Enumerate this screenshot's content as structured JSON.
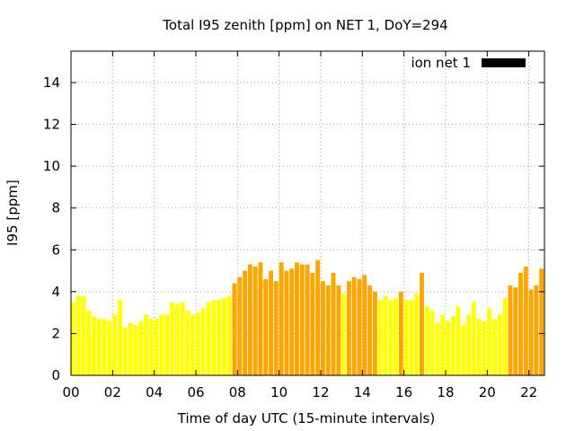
{
  "chart_data": {
    "type": "bar",
    "title": "Total I95 zenith [ppm] on NET 1, DoY=294",
    "xlabel": "Time of day UTC (15-minute intervals)",
    "ylabel": "I95 [ppm]",
    "xlim": [
      0,
      22.75
    ],
    "ylim": [
      0,
      15.5
    ],
    "x_ticks": [
      0,
      2,
      4,
      6,
      8,
      10,
      12,
      14,
      16,
      18,
      20,
      22
    ],
    "x_tick_labels": [
      "00",
      "02",
      "04",
      "06",
      "08",
      "10",
      "12",
      "14",
      "16",
      "18",
      "20",
      "22"
    ],
    "y_ticks": [
      0,
      2,
      4,
      6,
      8,
      10,
      12,
      14
    ],
    "y_tick_labels": [
      "0",
      "2",
      "4",
      "6",
      "8",
      "10",
      "12",
      "14"
    ],
    "grid": true,
    "legend": {
      "position": "top-right",
      "label": "ion net 1",
      "color": "#000000"
    },
    "interval_hours": 0.25,
    "colors": {
      "low": "#ffff00",
      "medium": "#ffa500"
    },
    "series": [
      {
        "name": "ion net 1",
        "x": [
          0.0,
          0.25,
          0.5,
          0.75,
          1.0,
          1.25,
          1.5,
          1.75,
          2.0,
          2.25,
          2.5,
          2.75,
          3.0,
          3.25,
          3.5,
          3.75,
          4.0,
          4.25,
          4.5,
          4.75,
          5.0,
          5.25,
          5.5,
          5.75,
          6.0,
          6.25,
          6.5,
          6.75,
          7.0,
          7.25,
          7.5,
          7.75,
          8.0,
          8.25,
          8.5,
          8.75,
          9.0,
          9.25,
          9.5,
          9.75,
          10.0,
          10.25,
          10.5,
          10.75,
          11.0,
          11.25,
          11.5,
          11.75,
          12.0,
          12.25,
          12.5,
          12.75,
          13.0,
          13.25,
          13.5,
          13.75,
          14.0,
          14.25,
          14.5,
          14.75,
          15.0,
          15.25,
          15.5,
          15.75,
          16.0,
          16.25,
          16.5,
          16.75,
          17.0,
          17.25,
          17.5,
          17.75,
          18.0,
          18.25,
          18.5,
          18.75,
          19.0,
          19.25,
          19.5,
          19.75,
          20.0,
          20.25,
          20.5,
          20.75,
          21.0,
          21.25,
          21.5,
          21.75,
          22.0,
          22.25,
          22.5,
          22.75
        ],
        "values": [
          3.5,
          3.8,
          3.8,
          3.1,
          2.8,
          2.7,
          2.7,
          2.6,
          2.9,
          3.6,
          2.3,
          2.5,
          2.4,
          2.6,
          2.9,
          2.7,
          2.7,
          2.9,
          2.9,
          3.5,
          3.4,
          3.5,
          3.1,
          2.9,
          3.0,
          3.2,
          3.5,
          3.6,
          3.6,
          3.7,
          3.8,
          4.4,
          4.7,
          5.0,
          5.3,
          5.2,
          5.4,
          4.6,
          5.0,
          4.5,
          5.4,
          5.0,
          5.1,
          5.4,
          5.3,
          5.3,
          4.9,
          5.5,
          4.5,
          4.3,
          4.9,
          4.3,
          3.9,
          4.5,
          4.7,
          4.6,
          4.8,
          4.3,
          4.0,
          3.6,
          3.8,
          3.6,
          3.7,
          4.0,
          3.6,
          3.6,
          3.9,
          4.9,
          3.3,
          3.1,
          2.5,
          2.9,
          2.6,
          2.8,
          3.3,
          2.4,
          2.9,
          3.5,
          2.7,
          2.6,
          3.2,
          2.7,
          2.9,
          3.7,
          4.3,
          4.2,
          4.9,
          5.2,
          4.1,
          4.3,
          5.1,
          5.0
        ],
        "levels": [
          "low",
          "low",
          "low",
          "low",
          "low",
          "low",
          "low",
          "low",
          "low",
          "low",
          "low",
          "low",
          "low",
          "low",
          "low",
          "low",
          "low",
          "low",
          "low",
          "low",
          "low",
          "low",
          "low",
          "low",
          "low",
          "low",
          "low",
          "low",
          "low",
          "low",
          "low",
          "medium",
          "medium",
          "medium",
          "medium",
          "medium",
          "medium",
          "medium",
          "medium",
          "medium",
          "medium",
          "medium",
          "medium",
          "medium",
          "medium",
          "medium",
          "medium",
          "medium",
          "medium",
          "medium",
          "medium",
          "medium",
          "low",
          "medium",
          "medium",
          "medium",
          "medium",
          "medium",
          "medium",
          "low",
          "low",
          "low",
          "low",
          "medium",
          "low",
          "low",
          "low",
          "medium",
          "low",
          "low",
          "low",
          "low",
          "low",
          "low",
          "low",
          "low",
          "low",
          "low",
          "low",
          "low",
          "low",
          "low",
          "low",
          "low",
          "medium",
          "medium",
          "medium",
          "medium",
          "medium",
          "medium",
          "medium",
          "medium"
        ]
      }
    ]
  }
}
